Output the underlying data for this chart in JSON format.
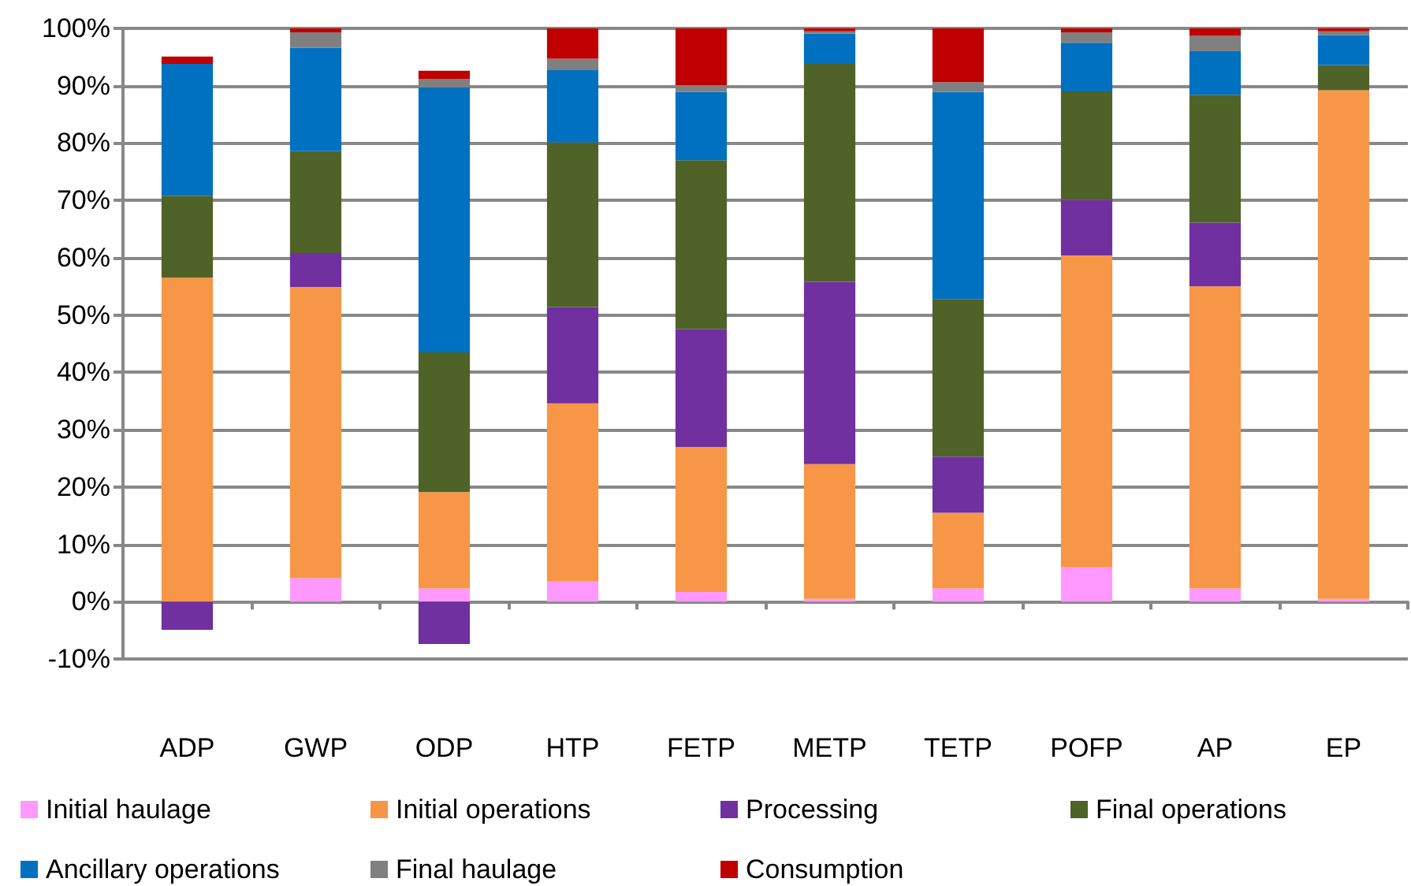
{
  "chart_data": {
    "type": "bar",
    "stacked": true,
    "grid": "y",
    "legend": "bottom",
    "categories": [
      "ADP",
      "GWP",
      "ODP",
      "HTP",
      "FETP",
      "METP",
      "TETP",
      "POFP",
      "AP",
      "EP"
    ],
    "ylim": [
      -10,
      100
    ],
    "yticks": [
      {
        "value": -10,
        "label": "-10%"
      },
      {
        "value": 0,
        "label": "0%"
      },
      {
        "value": 10,
        "label": "10%"
      },
      {
        "value": 20,
        "label": "20%"
      },
      {
        "value": 30,
        "label": "30%"
      },
      {
        "value": 40,
        "label": "40%"
      },
      {
        "value": 50,
        "label": "50%"
      },
      {
        "value": 60,
        "label": "60%"
      },
      {
        "value": 70,
        "label": "70%"
      },
      {
        "value": 80,
        "label": "80%"
      },
      {
        "value": 90,
        "label": "90%"
      },
      {
        "value": 100,
        "label": "100%"
      }
    ],
    "series": [
      {
        "name": "Initial haulage",
        "color": "#ff99ff",
        "values": [
          0,
          4.1,
          2.3,
          3.5,
          1.7,
          0.5,
          2.3,
          6.0,
          2.3,
          0.5
        ]
      },
      {
        "name": "Initial operations",
        "color": "#f79646",
        "values": [
          56.5,
          50.8,
          16.8,
          31.1,
          25.3,
          23.5,
          13.2,
          54.4,
          52.7,
          88.7
        ]
      },
      {
        "name": "Processing",
        "color": "#7030a0",
        "values": [
          -4.9,
          5.9,
          -7.4,
          16.8,
          20.5,
          31.8,
          9.8,
          9.7,
          11.1,
          0
        ]
      },
      {
        "name": "Final operations",
        "color": "#4f6228",
        "values": [
          14.3,
          17.8,
          24.4,
          28.7,
          29.5,
          38.0,
          27.5,
          18.9,
          22.3,
          4.4
        ]
      },
      {
        "name": "Ancillary operations",
        "color": "#0070c0",
        "values": [
          23.0,
          18.0,
          46.2,
          12.6,
          11.9,
          5.3,
          36.1,
          8.5,
          7.6,
          5.2
        ]
      },
      {
        "name": "Final haulage",
        "color": "#808080",
        "values": [
          0,
          2.7,
          1.5,
          2.0,
          1.2,
          0.4,
          1.7,
          1.8,
          2.7,
          0.7
        ]
      },
      {
        "name": "Consumption",
        "color": "#c00000",
        "values": [
          1.3,
          0.7,
          1.4,
          5.3,
          9.9,
          0.5,
          9.4,
          0.7,
          1.3,
          0.5
        ]
      }
    ]
  }
}
